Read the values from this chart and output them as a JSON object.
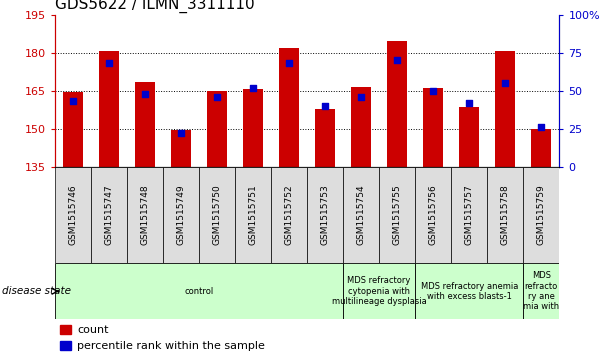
{
  "title": "GDS5622 / ILMN_3311110",
  "samples": [
    "GSM1515746",
    "GSM1515747",
    "GSM1515748",
    "GSM1515749",
    "GSM1515750",
    "GSM1515751",
    "GSM1515752",
    "GSM1515753",
    "GSM1515754",
    "GSM1515755",
    "GSM1515756",
    "GSM1515757",
    "GSM1515758",
    "GSM1515759"
  ],
  "count_values": [
    164.5,
    180.5,
    168.5,
    149.5,
    165.0,
    165.5,
    182.0,
    158.0,
    166.5,
    184.5,
    166.0,
    158.5,
    180.5,
    150.0
  ],
  "percentile_values": [
    43,
    68,
    48,
    22,
    46,
    52,
    68,
    40,
    46,
    70,
    50,
    42,
    55,
    26
  ],
  "y_min": 135,
  "y_max": 195,
  "y_ticks": [
    135,
    150,
    165,
    180,
    195
  ],
  "y2_ticks": [
    0,
    25,
    50,
    75,
    100
  ],
  "bar_color": "#cc0000",
  "marker_color": "#0000cc",
  "bar_bottom": 135,
  "disease_groups": [
    {
      "label": "control",
      "start": 0,
      "end": 8
    },
    {
      "label": "MDS refractory\ncytopenia with\nmultilineage dysplasia",
      "start": 8,
      "end": 10
    },
    {
      "label": "MDS refractory anemia\nwith excess blasts-1",
      "start": 10,
      "end": 13
    },
    {
      "label": "MDS\nrefracto\nry ane\nmia with",
      "start": 13,
      "end": 14
    }
  ],
  "disease_group_color": "#ccffcc",
  "sample_cell_color": "#dddddd",
  "xlabel_disease": "disease state",
  "legend_count": "count",
  "legend_percentile": "percentile rank within the sample",
  "title_fontsize": 11,
  "tick_fontsize": 8,
  "label_fontsize": 8
}
